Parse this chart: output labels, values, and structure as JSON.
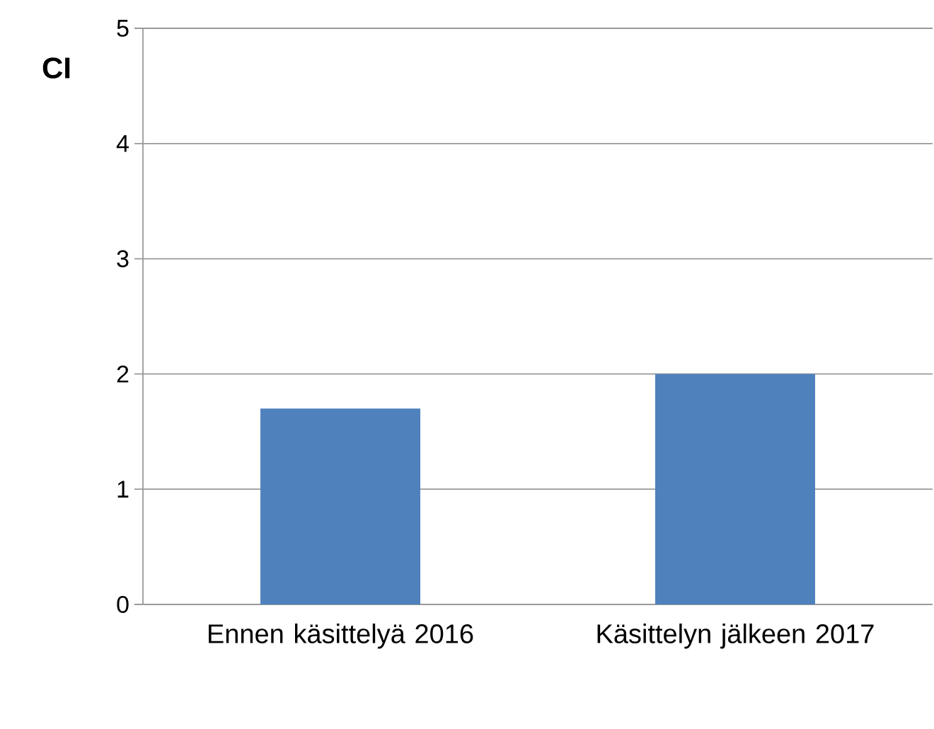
{
  "chart_data": {
    "type": "bar",
    "ylabel": "CI",
    "categories": [
      "Ennen käsittelyä 2016",
      "Käsittelyn jälkeen 2017"
    ],
    "values": [
      1.7,
      2.0
    ],
    "color": "#4f81bd",
    "ylim": [
      0,
      5
    ],
    "yticks": [
      0,
      1,
      2,
      3,
      4,
      5
    ],
    "grid": "y"
  }
}
